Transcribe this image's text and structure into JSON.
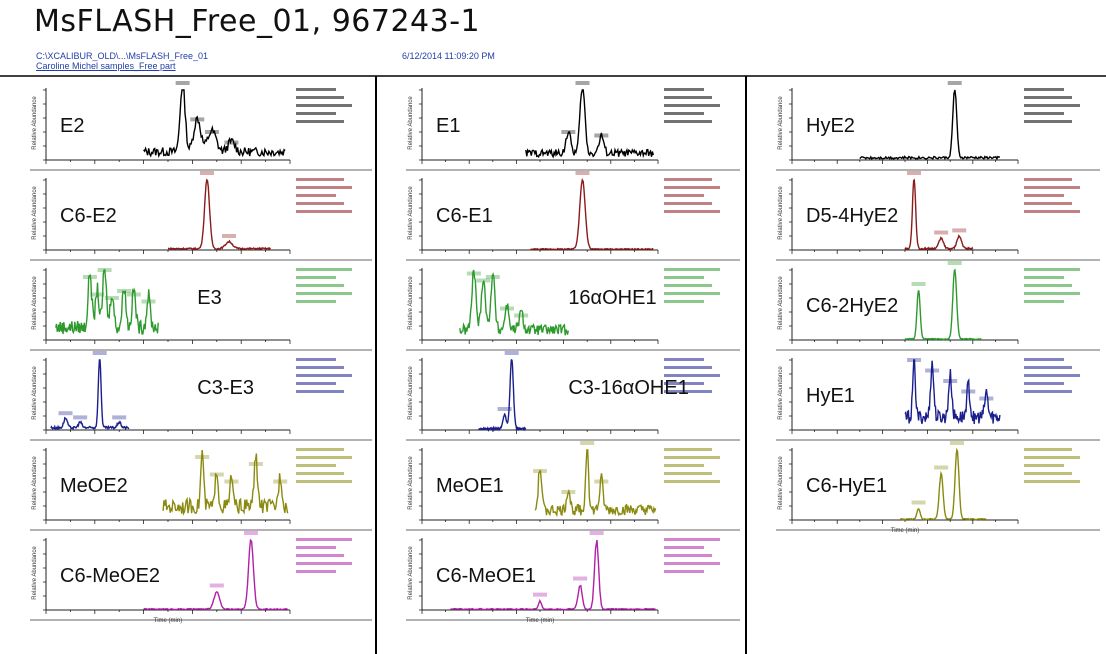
{
  "title": "MsFLASH_Free_01, 967243-1",
  "header": {
    "path": "C:\\XCALIBUR_OLD\\...\\MsFLASH_Free_01",
    "datetime": "6/12/2014 11:09:20 PM",
    "samples": "Caroline Michel samples_Free part"
  },
  "colors": {
    "black": "#000000",
    "darkred": "#8b1a1a",
    "green": "#2e9a2e",
    "navy": "#1a1f8c",
    "olive": "#8a8a10",
    "magenta": "#b020a8"
  },
  "chart_data": {
    "type": "line",
    "x_unit_label": "Time (min)",
    "y_unit_label": "Relative Abundance",
    "x_range": [
      11,
      16
    ],
    "y_range": [
      0,
      100
    ],
    "panels": [
      {
        "column": 1,
        "row": 1,
        "label": "E2",
        "color": "black",
        "peaks": [
          {
            "x": 13.8,
            "h": 100,
            "w": 0.07
          },
          {
            "x": 14.1,
            "h": 48,
            "w": 0.1
          },
          {
            "x": 14.4,
            "h": 30,
            "w": 0.12
          },
          {
            "x": 14.8,
            "h": 15,
            "w": 0.1
          }
        ],
        "noise": 18,
        "start": 13.0,
        "end": 15.9
      },
      {
        "column": 1,
        "row": 2,
        "label": "C6-E2",
        "color": "darkred",
        "peaks": [
          {
            "x": 14.3,
            "h": 100,
            "w": 0.07
          },
          {
            "x": 14.75,
            "h": 10,
            "w": 0.1
          }
        ],
        "noise": 3,
        "start": 13.5,
        "end": 15.6
      },
      {
        "column": 1,
        "row": 3,
        "label": "E3",
        "color": "green",
        "peaks": [
          {
            "x": 11.9,
            "h": 80,
            "w": 0.05
          },
          {
            "x": 12.05,
            "h": 55,
            "w": 0.05
          },
          {
            "x": 12.2,
            "h": 90,
            "w": 0.05
          },
          {
            "x": 12.35,
            "h": 50,
            "w": 0.05
          },
          {
            "x": 12.6,
            "h": 60,
            "w": 0.05
          },
          {
            "x": 12.8,
            "h": 55,
            "w": 0.05
          },
          {
            "x": 13.1,
            "h": 45,
            "w": 0.05
          }
        ],
        "noise": 28,
        "start": 11.2,
        "end": 13.3
      },
      {
        "column": 1,
        "row": 4,
        "label": "C3-E3",
        "color": "navy",
        "peaks": [
          {
            "x": 12.1,
            "h": 100,
            "w": 0.04
          },
          {
            "x": 11.4,
            "h": 14,
            "w": 0.05
          },
          {
            "x": 11.7,
            "h": 8,
            "w": 0.05
          },
          {
            "x": 12.5,
            "h": 8,
            "w": 0.05
          }
        ],
        "noise": 5,
        "start": 11.1,
        "end": 12.7
      },
      {
        "column": 1,
        "row": 5,
        "label": "MeOE2",
        "color": "olive",
        "peaks": [
          {
            "x": 14.2,
            "h": 80,
            "w": 0.04
          },
          {
            "x": 14.5,
            "h": 55,
            "w": 0.04
          },
          {
            "x": 14.8,
            "h": 45,
            "w": 0.04
          },
          {
            "x": 15.3,
            "h": 70,
            "w": 0.05
          },
          {
            "x": 15.8,
            "h": 45,
            "w": 0.05
          }
        ],
        "noise": 30,
        "start": 13.4,
        "end": 15.95
      },
      {
        "column": 1,
        "row": 6,
        "label": "C6-MeOE2",
        "color": "magenta",
        "peaks": [
          {
            "x": 14.5,
            "h": 25,
            "w": 0.08
          },
          {
            "x": 15.2,
            "h": 100,
            "w": 0.07
          }
        ],
        "noise": 2,
        "start": 13.0,
        "end": 15.95
      },
      {
        "column": 2,
        "row": 1,
        "label": "E1",
        "color": "black",
        "peaks": [
          {
            "x": 14.4,
            "h": 100,
            "w": 0.07
          },
          {
            "x": 14.1,
            "h": 30,
            "w": 0.07
          },
          {
            "x": 14.8,
            "h": 25,
            "w": 0.07
          }
        ],
        "noise": 15,
        "start": 13.2,
        "end": 15.9
      },
      {
        "column": 2,
        "row": 2,
        "label": "C6-E1",
        "color": "darkred",
        "peaks": [
          {
            "x": 14.4,
            "h": 100,
            "w": 0.08
          }
        ],
        "noise": 2,
        "start": 13.3,
        "end": 15.9
      },
      {
        "column": 2,
        "row": 3,
        "label": "16αOHE1",
        "color": "green",
        "peaks": [
          {
            "x": 12.1,
            "h": 85,
            "w": 0.06
          },
          {
            "x": 12.3,
            "h": 75,
            "w": 0.06
          },
          {
            "x": 12.5,
            "h": 80,
            "w": 0.06
          },
          {
            "x": 12.8,
            "h": 35,
            "w": 0.06
          },
          {
            "x": 13.1,
            "h": 25,
            "w": 0.06
          }
        ],
        "noise": 22,
        "start": 11.8,
        "end": 14.1
      },
      {
        "column": 2,
        "row": 4,
        "label": "C3-16αOHE1",
        "color": "navy",
        "peaks": [
          {
            "x": 12.9,
            "h": 100,
            "w": 0.05
          },
          {
            "x": 12.75,
            "h": 20,
            "w": 0.05
          }
        ],
        "noise": 3,
        "start": 12.2,
        "end": 13.2
      },
      {
        "column": 2,
        "row": 5,
        "label": "MeOE1",
        "color": "olive",
        "peaks": [
          {
            "x": 14.5,
            "h": 100,
            "w": 0.04
          },
          {
            "x": 13.5,
            "h": 60,
            "w": 0.05
          },
          {
            "x": 14.1,
            "h": 30,
            "w": 0.05
          },
          {
            "x": 14.8,
            "h": 45,
            "w": 0.05
          }
        ],
        "noise": 22,
        "start": 13.4,
        "end": 15.95
      },
      {
        "column": 2,
        "row": 6,
        "label": "C6-MeOE1",
        "color": "magenta",
        "peaks": [
          {
            "x": 14.7,
            "h": 100,
            "w": 0.06
          },
          {
            "x": 14.35,
            "h": 35,
            "w": 0.06
          },
          {
            "x": 13.5,
            "h": 12,
            "w": 0.04
          }
        ],
        "noise": 2,
        "start": 11.6,
        "end": 15.95
      },
      {
        "column": 3,
        "row": 1,
        "label": "HyE2",
        "color": "black",
        "peaks": [
          {
            "x": 14.6,
            "h": 100,
            "w": 0.06
          }
        ],
        "noise": 5,
        "start": 12.5,
        "end": 15.6
      },
      {
        "column": 3,
        "row": 2,
        "label": "D5-4HyE2",
        "color": "darkred",
        "peaks": [
          {
            "x": 13.7,
            "h": 100,
            "w": 0.05
          },
          {
            "x": 14.3,
            "h": 15,
            "w": 0.07
          },
          {
            "x": 14.7,
            "h": 18,
            "w": 0.07
          }
        ],
        "noise": 3,
        "start": 13.5,
        "end": 15.0
      },
      {
        "column": 3,
        "row": 3,
        "label": "C6-2HyE2",
        "color": "green",
        "peaks": [
          {
            "x": 13.8,
            "h": 70,
            "w": 0.05
          },
          {
            "x": 14.6,
            "h": 100,
            "w": 0.06
          }
        ],
        "noise": 2,
        "start": 13.5,
        "end": 15.2
      },
      {
        "column": 3,
        "row": 4,
        "label": "HyE1",
        "color": "navy",
        "peaks": [
          {
            "x": 13.7,
            "h": 90,
            "w": 0.04
          },
          {
            "x": 14.1,
            "h": 75,
            "w": 0.05
          },
          {
            "x": 14.5,
            "h": 60,
            "w": 0.05
          },
          {
            "x": 14.9,
            "h": 45,
            "w": 0.05
          },
          {
            "x": 15.3,
            "h": 35,
            "w": 0.05
          }
        ],
        "noise": 28,
        "start": 13.5,
        "end": 15.6
      },
      {
        "column": 3,
        "row": 5,
        "label": "C6-HyE1",
        "color": "olive",
        "peaks": [
          {
            "x": 13.8,
            "h": 15,
            "w": 0.05
          },
          {
            "x": 14.3,
            "h": 65,
            "w": 0.06
          },
          {
            "x": 14.65,
            "h": 100,
            "w": 0.06
          }
        ],
        "noise": 2,
        "start": 13.4,
        "end": 15.3
      }
    ]
  }
}
